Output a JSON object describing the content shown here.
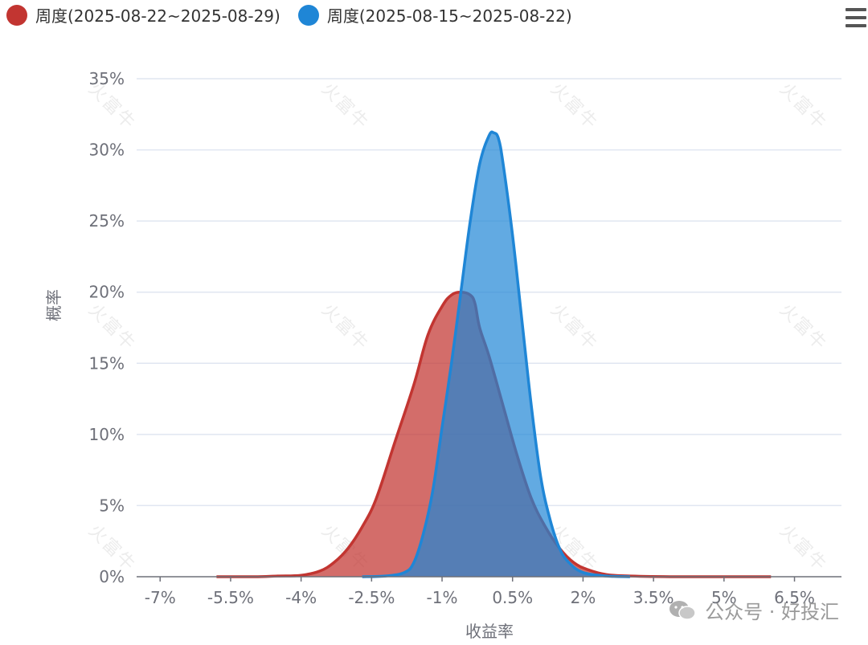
{
  "legend": [
    {
      "name": "周度(2025-08-22~2025-08-29)",
      "color": "#c23531"
    },
    {
      "name": "周度(2025-08-15~2025-08-22)",
      "color": "#1f86d6"
    }
  ],
  "watermark_text": "火富牛",
  "brand": {
    "label": "公众号 · 好投汇",
    "icon": "wechat-icon"
  },
  "menu_icon": "hamburger-menu-icon",
  "chart_data": {
    "type": "area",
    "xlabel": "收益率",
    "ylabel": "概率",
    "xlim": [
      -7.5,
      7.5
    ],
    "ylim": [
      0,
      35
    ],
    "x_ticks": [
      "-7%",
      "-5.5%",
      "-4%",
      "-2.5%",
      "-1%",
      "0.5%",
      "2%",
      "3.5%",
      "5%",
      "6.5%"
    ],
    "x_tick_values": [
      -7,
      -5.5,
      -4,
      -2.5,
      -1,
      0.5,
      2,
      3.5,
      5,
      6.5
    ],
    "y_ticks": [
      "0%",
      "5%",
      "10%",
      "15%",
      "20%",
      "25%",
      "30%",
      "35%"
    ],
    "y_tick_values": [
      0,
      5,
      10,
      15,
      20,
      25,
      30,
      35
    ],
    "grid": true,
    "series": [
      {
        "name": "周度(2025-08-22~2025-08-29)",
        "color": "#c23531",
        "fill": "rgba(194,53,49,0.72)",
        "points": [
          [
            -5.8,
            0.0
          ],
          [
            -5.0,
            0.0
          ],
          [
            -4.5,
            0.05
          ],
          [
            -4.0,
            0.1
          ],
          [
            -3.6,
            0.4
          ],
          [
            -3.3,
            1.0
          ],
          [
            -3.0,
            2.0
          ],
          [
            -2.7,
            3.5
          ],
          [
            -2.4,
            5.5
          ],
          [
            -2.0,
            9.5
          ],
          [
            -1.6,
            13.5
          ],
          [
            -1.3,
            17.0
          ],
          [
            -1.0,
            19.0
          ],
          [
            -0.8,
            19.8
          ],
          [
            -0.6,
            20.0
          ],
          [
            -0.4,
            19.8
          ],
          [
            -0.3,
            19.2
          ],
          [
            -0.2,
            17.5
          ],
          [
            0.0,
            15.5
          ],
          [
            0.3,
            12.0
          ],
          [
            0.6,
            8.5
          ],
          [
            0.9,
            5.5
          ],
          [
            1.2,
            3.5
          ],
          [
            1.5,
            2.0
          ],
          [
            1.8,
            1.0
          ],
          [
            2.1,
            0.5
          ],
          [
            2.5,
            0.15
          ],
          [
            3.0,
            0.05
          ],
          [
            4.0,
            0.0
          ],
          [
            6.0,
            0.0
          ]
        ]
      },
      {
        "name": "周度(2025-08-15~2025-08-22)",
        "color": "#1f86d6",
        "fill": "rgba(31,134,214,0.70)",
        "points": [
          [
            -2.7,
            0.0
          ],
          [
            -2.2,
            0.05
          ],
          [
            -1.8,
            0.3
          ],
          [
            -1.6,
            1.0
          ],
          [
            -1.4,
            3.0
          ],
          [
            -1.2,
            6.0
          ],
          [
            -1.0,
            10.5
          ],
          [
            -0.8,
            15.0
          ],
          [
            -0.6,
            20.0
          ],
          [
            -0.4,
            25.0
          ],
          [
            -0.2,
            29.0
          ],
          [
            0.0,
            31.0
          ],
          [
            0.1,
            31.2
          ],
          [
            0.2,
            30.8
          ],
          [
            0.3,
            29.0
          ],
          [
            0.5,
            24.0
          ],
          [
            0.7,
            18.0
          ],
          [
            0.9,
            12.0
          ],
          [
            1.1,
            7.0
          ],
          [
            1.3,
            4.0
          ],
          [
            1.5,
            2.0
          ],
          [
            1.7,
            1.0
          ],
          [
            2.0,
            0.3
          ],
          [
            2.5,
            0.05
          ],
          [
            3.0,
            0.0
          ]
        ]
      }
    ]
  }
}
